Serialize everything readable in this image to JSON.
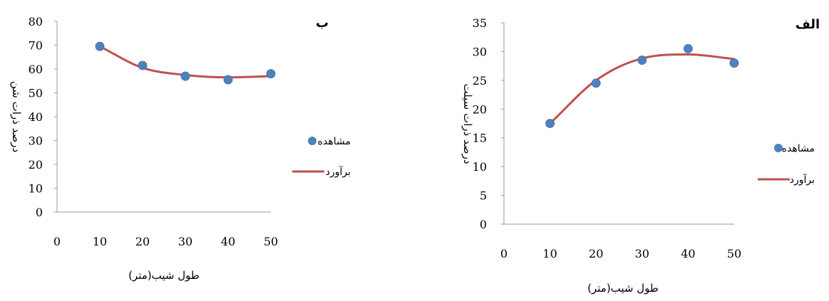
{
  "chart_data": [
    {
      "type": "scatter",
      "title": "ب",
      "xlabel": "طول شیب(متر)",
      "ylabel": "درصد ذرات شن",
      "xlim": [
        0,
        50
      ],
      "ylim": [
        0,
        80
      ],
      "xticks": [
        0,
        10,
        20,
        30,
        40,
        50
      ],
      "yticks": [
        0,
        10,
        20,
        30,
        40,
        50,
        60,
        70,
        80
      ],
      "grid": false,
      "legend_position": "right",
      "series": [
        {
          "name": "مشاهده",
          "kind": "points",
          "color": "#4F81BD",
          "x": [
            10,
            20,
            30,
            40,
            50
          ],
          "y": [
            69.5,
            61.5,
            57.0,
            55.5,
            58.0
          ]
        },
        {
          "name": "برآورد",
          "kind": "line",
          "color": "#C0504D",
          "x": [
            10,
            20,
            30,
            40,
            50
          ],
          "y": [
            69.5,
            60.5,
            57.5,
            56.5,
            57.0
          ]
        }
      ]
    },
    {
      "type": "scatter",
      "title": "الف",
      "xlabel": "طول شیب(متر)",
      "ylabel": "درصد ذرات سیلت",
      "xlim": [
        0,
        50
      ],
      "ylim": [
        0,
        35
      ],
      "xticks": [
        0,
        10,
        20,
        30,
        40,
        50
      ],
      "yticks": [
        0,
        5,
        10,
        15,
        20,
        25,
        30,
        35
      ],
      "grid": false,
      "legend_position": "right",
      "series": [
        {
          "name": "مشاهده",
          "kind": "points",
          "color": "#4F81BD",
          "x": [
            10,
            20,
            30,
            40,
            50
          ],
          "y": [
            17.5,
            24.5,
            28.5,
            30.5,
            28.0
          ]
        },
        {
          "name": "برآورد",
          "kind": "line",
          "color": "#C0504D",
          "x": [
            10,
            20,
            30,
            40,
            50
          ],
          "y": [
            17.5,
            25.0,
            28.8,
            29.5,
            28.7
          ]
        }
      ]
    }
  ]
}
